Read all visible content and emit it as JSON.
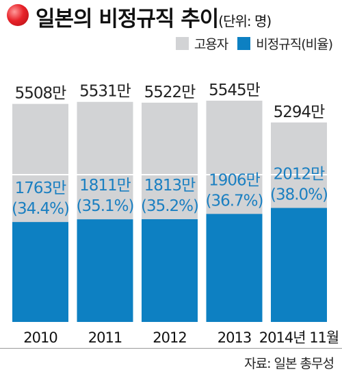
{
  "header": {
    "title": "일본의 비정규직 추이",
    "unit": "(단위: 명)"
  },
  "legend": [
    {
      "label": "고용자",
      "color": "#d2d3d5"
    },
    {
      "label": "비정규직(비율)",
      "color": "#0d80c2"
    }
  ],
  "source": "자료: 일본 총무성",
  "chart_data": {
    "type": "bar",
    "stacking": "overlay",
    "categories": [
      "2010",
      "2011",
      "2012",
      "2013",
      "2014년 11월"
    ],
    "series": [
      {
        "name": "고용자",
        "values": [
          5508,
          5531,
          5522,
          5545,
          5294
        ],
        "labels": [
          "5508만",
          "5531만",
          "5522만",
          "5545만",
          "5294만"
        ],
        "color": "#d2d3d5"
      },
      {
        "name": "비정규직(비율)",
        "values": [
          1763,
          1811,
          1813,
          1906,
          2012
        ],
        "labels": [
          "1763만",
          "1811만",
          "1813만",
          "1906만",
          "2012만"
        ],
        "ratios": [
          "(34.4%)",
          "(35.1%)",
          "(35.2%)",
          "(36.7%)",
          "(38.0%)"
        ],
        "color": "#0d80c2"
      }
    ],
    "axis_break": true,
    "grid": false
  }
}
